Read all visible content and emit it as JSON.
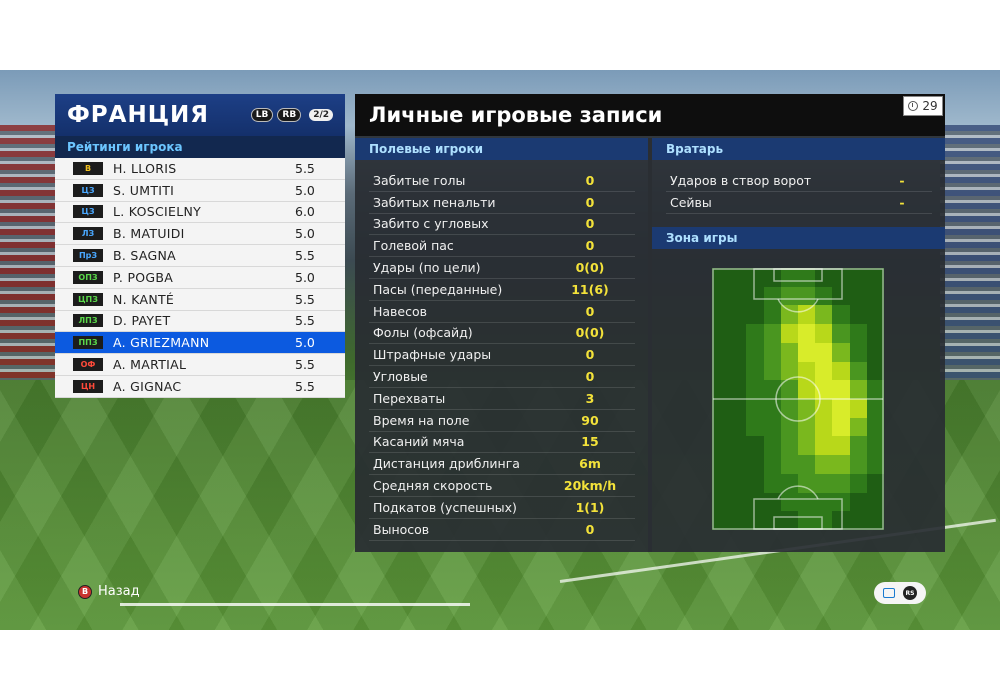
{
  "team": {
    "name": "ФРАНЦИЯ",
    "lb": "LB",
    "rb": "RB",
    "page": "2/2",
    "ratings_title": "Рейтинги игрока"
  },
  "players": [
    {
      "pos": "В",
      "pos_color": "#f0c020",
      "name": "H. LLORIS",
      "rating": "5.5"
    },
    {
      "pos": "ЦЗ",
      "pos_color": "#4aa8ff",
      "name": "S. UMTITI",
      "rating": "5.0"
    },
    {
      "pos": "ЦЗ",
      "pos_color": "#4aa8ff",
      "name": "L. KOSCIELNY",
      "rating": "6.0"
    },
    {
      "pos": "ЛЗ",
      "pos_color": "#4aa8ff",
      "name": "B. MATUIDI",
      "rating": "5.0"
    },
    {
      "pos": "ПрЗ",
      "pos_color": "#4aa8ff",
      "name": "B. SAGNA",
      "rating": "5.5"
    },
    {
      "pos": "ОПЗ",
      "pos_color": "#5ad84a",
      "name": "P. POGBA",
      "rating": "5.0"
    },
    {
      "pos": "ЦПЗ",
      "pos_color": "#5ad84a",
      "name": "N. KANTÉ",
      "rating": "5.5"
    },
    {
      "pos": "ЛПЗ",
      "pos_color": "#5ad84a",
      "name": "D. PAYET",
      "rating": "5.5"
    },
    {
      "pos": "ППЗ",
      "pos_color": "#5ad84a",
      "name": "A. GRIEZMANN",
      "rating": "5.0",
      "selected": true
    },
    {
      "pos": "ОФ",
      "pos_color": "#ff4a3a",
      "name": "A. MARTIAL",
      "rating": "5.5"
    },
    {
      "pos": "ЦН",
      "pos_color": "#ff4a3a",
      "name": "A. GIGNAC",
      "rating": "5.5"
    }
  ],
  "records": {
    "title": "Личные игровые записи",
    "timer": "29",
    "field_title": "Полевые игроки",
    "field_stats": [
      {
        "label": "Забитые голы",
        "value": "0"
      },
      {
        "label": "Забитых пенальти",
        "value": "0"
      },
      {
        "label": "Забито с угловых",
        "value": "0"
      },
      {
        "label": "Голевой пас",
        "value": "0"
      },
      {
        "label": "Удары (по цели)",
        "value": "0(0)"
      },
      {
        "label": "Пасы (переданные)",
        "value": "11(6)"
      },
      {
        "label": "Навесов",
        "value": "0"
      },
      {
        "label": "Фолы (офсайд)",
        "value": "0(0)"
      },
      {
        "label": "Штрафные удары",
        "value": "0"
      },
      {
        "label": "Угловые",
        "value": "0"
      },
      {
        "label": "Перехваты",
        "value": "3"
      },
      {
        "label": "Время на поле",
        "value": "90"
      },
      {
        "label": "Касаний мяча",
        "value": "15"
      },
      {
        "label": "Дистанция дриблинга",
        "value": "6m"
      },
      {
        "label": "Средняя скорость",
        "value": "20km/h"
      },
      {
        "label": "Подкатов (успешных)",
        "value": "1(1)"
      },
      {
        "label": "Выносов",
        "value": "0"
      }
    ],
    "gk_title": "Вратарь",
    "gk_stats": [
      {
        "label": "Ударов в створ ворот",
        "value": "-"
      },
      {
        "label": "Сейвы",
        "value": "-"
      }
    ],
    "zone_title": "Зона игры"
  },
  "heatmap": {
    "colors": [
      "#1f5e14",
      "#2f7a1a",
      "#4a9620",
      "#7ab81e",
      "#b8d81a",
      "#d8ec2a"
    ],
    "rows": [
      [
        0,
        0,
        0,
        0,
        1,
        1,
        0,
        0,
        0,
        0
      ],
      [
        0,
        0,
        0,
        1,
        2,
        2,
        1,
        0,
        0,
        0
      ],
      [
        0,
        0,
        0,
        1,
        3,
        4,
        3,
        1,
        0,
        0
      ],
      [
        0,
        0,
        1,
        2,
        4,
        5,
        4,
        2,
        1,
        0
      ],
      [
        0,
        0,
        1,
        2,
        3,
        5,
        5,
        3,
        1,
        0
      ],
      [
        0,
        0,
        1,
        2,
        3,
        4,
        5,
        4,
        2,
        0
      ],
      [
        0,
        0,
        1,
        1,
        2,
        4,
        5,
        5,
        3,
        1
      ],
      [
        0,
        0,
        1,
        1,
        2,
        3,
        4,
        5,
        4,
        1
      ],
      [
        0,
        0,
        1,
        1,
        2,
        3,
        4,
        5,
        3,
        1
      ],
      [
        0,
        0,
        0,
        1,
        2,
        3,
        4,
        4,
        2,
        1
      ],
      [
        0,
        0,
        0,
        1,
        2,
        2,
        3,
        3,
        2,
        1
      ],
      [
        0,
        0,
        0,
        1,
        1,
        2,
        2,
        2,
        1,
        0
      ],
      [
        0,
        0,
        0,
        0,
        1,
        1,
        1,
        1,
        0,
        0
      ],
      [
        0,
        0,
        0,
        0,
        0,
        1,
        1,
        0,
        0,
        0
      ]
    ]
  },
  "footer": {
    "back_label": "Назад",
    "back_key": "B",
    "rs_key": "RS"
  }
}
